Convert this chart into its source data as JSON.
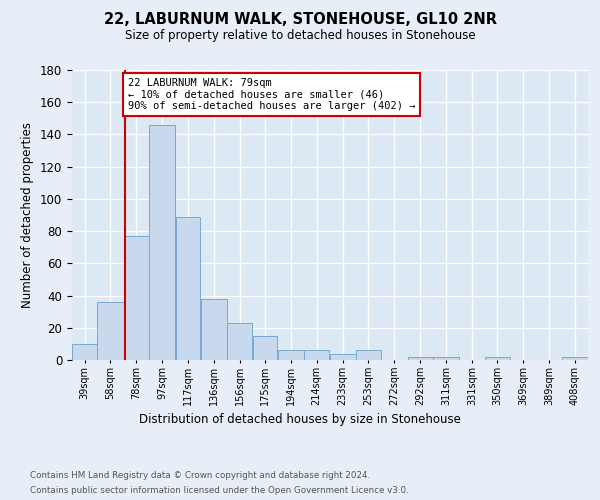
{
  "title": "22, LABURNUM WALK, STONEHOUSE, GL10 2NR",
  "subtitle": "Size of property relative to detached houses in Stonehouse",
  "xlabel": "Distribution of detached houses by size in Stonehouse",
  "ylabel": "Number of detached properties",
  "bar_color": "#c9d9ed",
  "bar_edge_color": "#7aaad0",
  "background_color": "#dde8f5",
  "grid_color": "#ffffff",
  "fig_background": "#e8eef8",
  "red_line_x": 79,
  "annotation_text": "22 LABURNUM WALK: 79sqm\n← 10% of detached houses are smaller (46)\n90% of semi-detached houses are larger (402) →",
  "annotation_box_color": "#ffffff",
  "annotation_box_edge": "#cc0000",
  "footnote1": "Contains HM Land Registry data © Crown copyright and database right 2024.",
  "footnote2": "Contains public sector information licensed under the Open Government Licence v3.0.",
  "bin_edges": [
    39,
    58,
    78,
    97,
    117,
    136,
    156,
    175,
    194,
    214,
    233,
    253,
    272,
    292,
    311,
    331,
    350,
    369,
    389,
    408,
    428
  ],
  "bin_counts": [
    10,
    36,
    77,
    146,
    89,
    38,
    23,
    15,
    6,
    6,
    4,
    6,
    0,
    2,
    2,
    0,
    2,
    0,
    0,
    2
  ],
  "ylim": [
    0,
    180
  ],
  "yticks": [
    0,
    20,
    40,
    60,
    80,
    100,
    120,
    140,
    160,
    180
  ]
}
